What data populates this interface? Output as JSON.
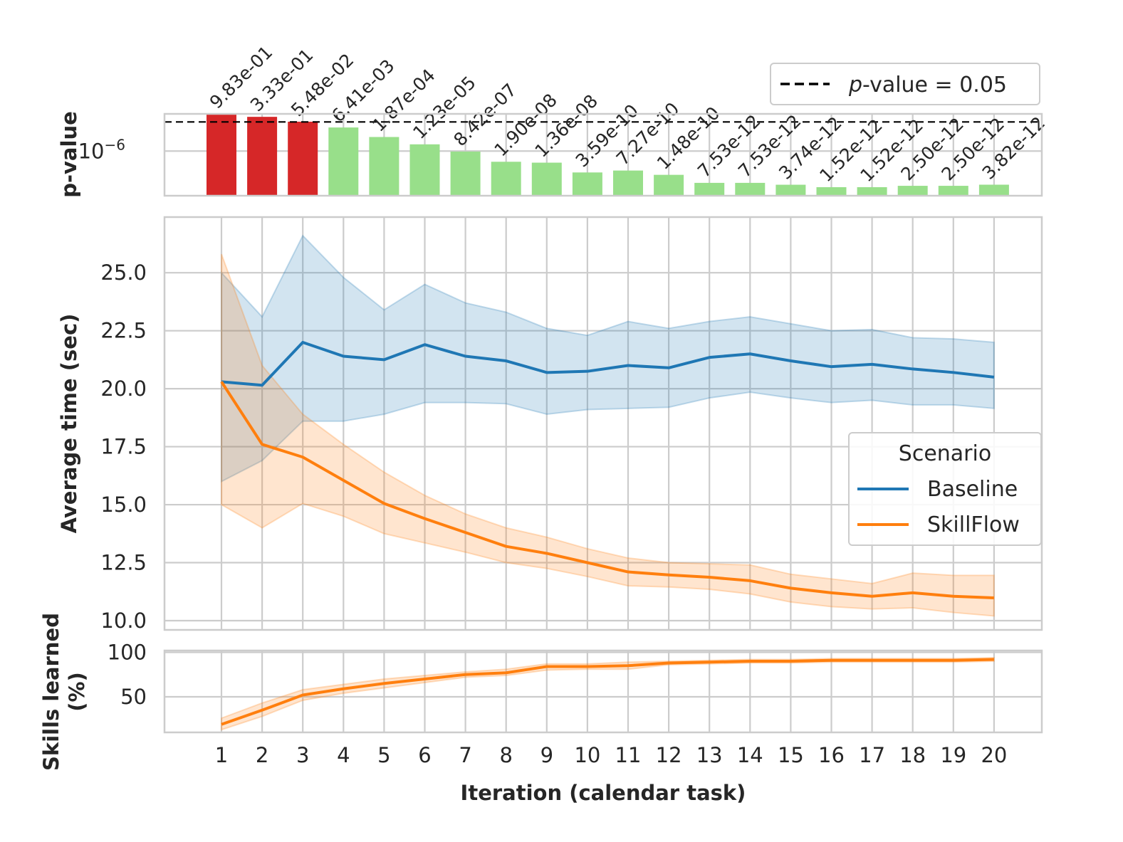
{
  "chart_data": [
    {
      "type": "bar",
      "panel": "top",
      "ylabel": "p-value",
      "yscale": "log",
      "ytick_label": "10−6",
      "categories": [
        "1",
        "2",
        "3",
        "4",
        "5",
        "6",
        "7",
        "8",
        "9",
        "10",
        "11",
        "12",
        "13",
        "14",
        "15",
        "16",
        "17",
        "18",
        "19",
        "20"
      ],
      "values": [
        0.983,
        0.333,
        0.0548,
        0.00641,
        0.000187,
        1.23e-05,
        8.42e-07,
        1.9e-08,
        1.36e-08,
        3.59e-10,
        7.27e-10,
        1.48e-10,
        7.53e-12,
        7.53e-12,
        3.74e-12,
        1.52e-12,
        1.52e-12,
        2.5e-12,
        2.5e-12,
        3.82e-12
      ],
      "value_labels": [
        "9.83e-01",
        "3.33e-01",
        "5.48e-02",
        "6.41e-03",
        "1.87e-04",
        "1.23e-05",
        "8.42e-07",
        "1.90e-08",
        "1.36e-08",
        "3.59e-10",
        "7.27e-10",
        "1.48e-10",
        "7.53e-12",
        "7.53e-12",
        "3.74e-12",
        "1.52e-12",
        "1.52e-12",
        "2.50e-12",
        "2.50e-12",
        "3.82e-12"
      ],
      "threshold": 0.05,
      "colors": {
        "significant": "#98df8a",
        "not_significant": "#d62728",
        "threshold": "#000000"
      },
      "legend": {
        "line_label_prefix": "p",
        "line_label_rest": "-value = 0.05",
        "position": "top-right"
      }
    },
    {
      "type": "line",
      "panel": "middle",
      "ylabel": "Average time (sec)",
      "ylim": [
        9.6,
        27.4
      ],
      "yticks": [
        "10.0",
        "12.5",
        "15.0",
        "17.5",
        "20.0",
        "22.5",
        "25.0"
      ],
      "x": [
        1,
        2,
        3,
        4,
        5,
        6,
        7,
        8,
        9,
        10,
        11,
        12,
        13,
        14,
        15,
        16,
        17,
        18,
        19,
        20
      ],
      "series": [
        {
          "name": "Baseline",
          "color": "#1f77b4",
          "values": [
            20.3,
            20.15,
            22.0,
            21.4,
            21.25,
            21.9,
            21.4,
            21.2,
            20.7,
            20.75,
            21.0,
            20.9,
            21.35,
            21.5,
            21.2,
            20.95,
            21.05,
            20.85,
            20.7,
            20.5
          ],
          "upper": [
            25.0,
            23.1,
            26.6,
            24.8,
            23.4,
            24.5,
            23.7,
            23.3,
            22.6,
            22.3,
            22.9,
            22.6,
            22.9,
            23.1,
            22.8,
            22.5,
            22.55,
            22.2,
            22.15,
            22.0
          ],
          "lower": [
            16.0,
            16.9,
            18.6,
            18.6,
            18.9,
            19.4,
            19.4,
            19.35,
            18.9,
            19.1,
            19.15,
            19.2,
            19.6,
            19.85,
            19.6,
            19.4,
            19.5,
            19.3,
            19.3,
            19.15
          ]
        },
        {
          "name": "SkillFlow",
          "color": "#ff7f0e",
          "values": [
            20.3,
            17.6,
            17.05,
            16.05,
            15.05,
            14.4,
            13.8,
            13.2,
            12.9,
            12.5,
            12.1,
            11.97,
            11.87,
            11.72,
            11.4,
            11.2,
            11.05,
            11.2,
            11.05,
            10.98
          ],
          "upper": [
            25.8,
            21.0,
            18.9,
            17.6,
            16.4,
            15.4,
            14.6,
            14.0,
            13.6,
            13.1,
            12.7,
            12.5,
            12.45,
            12.4,
            12.0,
            11.8,
            11.6,
            12.05,
            11.95,
            11.95
          ],
          "lower": [
            15.0,
            14.0,
            15.05,
            14.5,
            13.75,
            13.35,
            12.95,
            12.5,
            12.25,
            11.9,
            11.5,
            11.45,
            11.35,
            11.15,
            10.8,
            10.6,
            10.5,
            10.55,
            10.35,
            10.2
          ]
        }
      ],
      "legend": {
        "title": "Scenario",
        "entries": [
          "Baseline",
          "SkillFlow"
        ],
        "position": "center-right"
      }
    },
    {
      "type": "line",
      "panel": "bottom",
      "ylabel_line1": "Skills learned",
      "ylabel_line2": "(%)",
      "xlabel": "Iteration (calendar task)",
      "ylim": [
        10,
        102
      ],
      "yticks": [
        "50",
        "100"
      ],
      "x": [
        1,
        2,
        3,
        4,
        5,
        6,
        7,
        8,
        9,
        10,
        11,
        12,
        13,
        14,
        15,
        16,
        17,
        18,
        19,
        20
      ],
      "series": [
        {
          "name": "SkillFlow",
          "color": "#ff7f0e",
          "values": [
            19,
            35,
            52,
            59,
            65,
            70,
            75,
            77,
            84,
            84,
            85,
            88,
            89,
            90,
            90,
            91,
            91,
            91,
            91,
            92
          ],
          "upper": [
            26,
            43,
            58,
            64,
            70,
            74,
            78,
            81,
            87,
            87,
            89,
            90,
            91,
            92,
            92,
            93,
            93,
            93,
            93,
            94
          ],
          "lower": [
            13,
            28,
            46,
            54,
            60,
            66,
            72,
            74,
            80,
            81,
            81,
            86,
            87,
            88,
            88,
            89,
            89,
            89,
            89,
            90
          ]
        }
      ]
    }
  ]
}
